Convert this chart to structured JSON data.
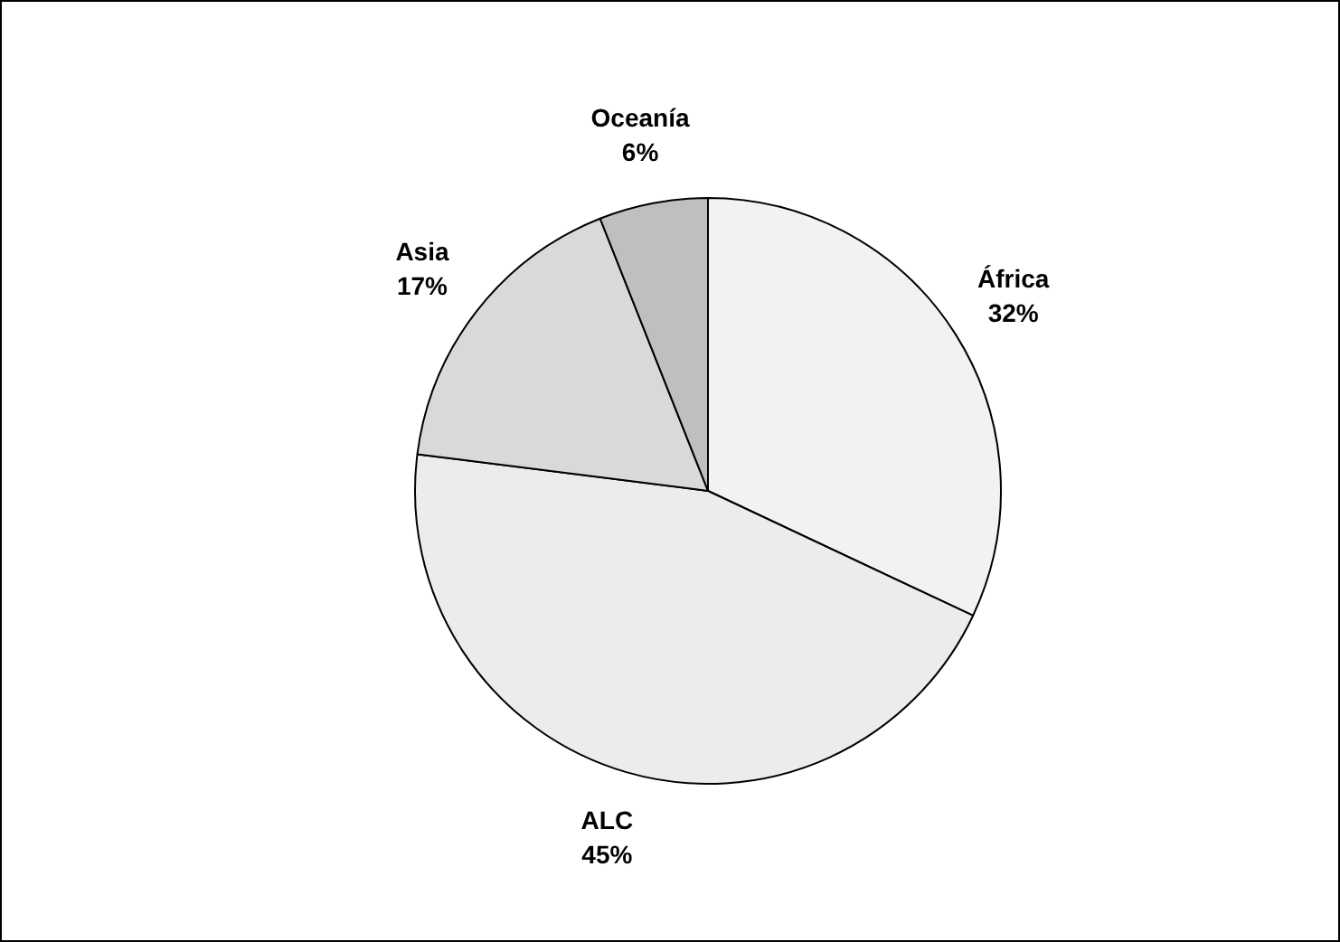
{
  "chart_data": {
    "type": "pie",
    "categories": [
      "África",
      "ALC",
      "Asia",
      "Oceanía"
    ],
    "values": [
      32,
      45,
      17,
      6
    ],
    "value_labels": [
      "32%",
      "45%",
      "17%",
      "6%"
    ],
    "colors": [
      "#f2f2f2",
      "#ececec",
      "#d9d9d9",
      "#bfbfbf"
    ],
    "legend": false
  }
}
